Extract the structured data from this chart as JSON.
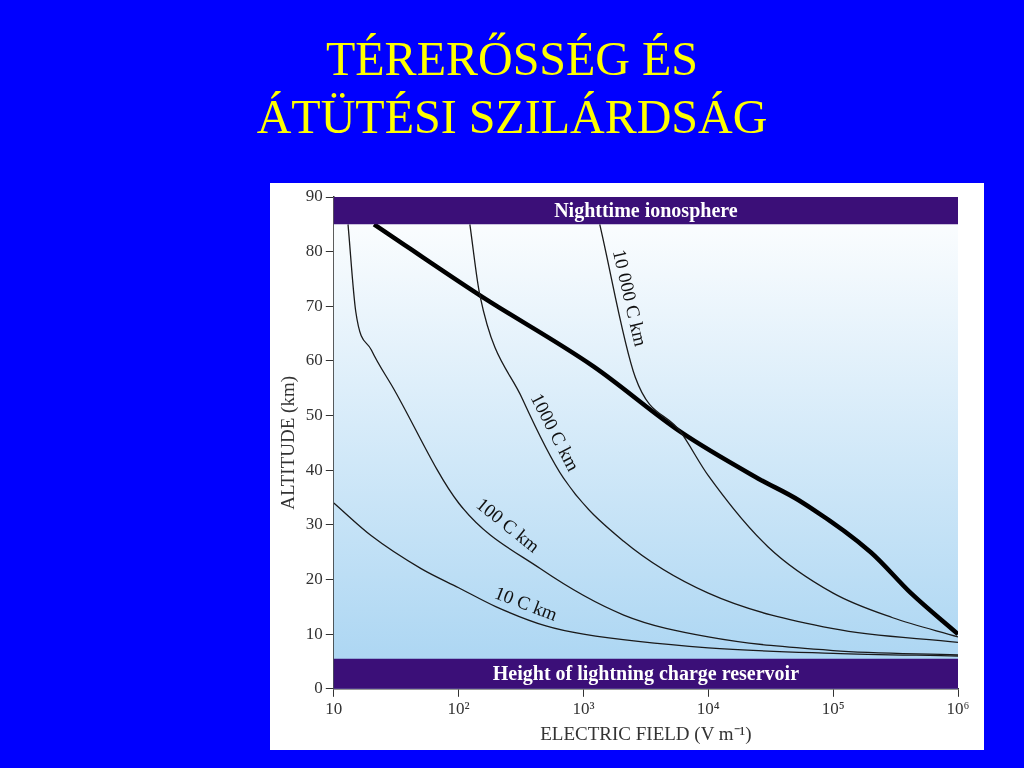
{
  "chart_data": {
    "type": "line",
    "title": "TÉRERŐSSÉG ÉS\nÁTÜTÉSI SZILÁRDSÁG",
    "xlabel": "ELECTRIC FIELD (V m⁻¹)",
    "ylabel": "ALTITUDE (km)",
    "log": "x",
    "grid": false,
    "legend": false,
    "marker": "none",
    "line_style": "solid",
    "xlim": [
      10,
      1000000
    ],
    "xticks": [
      10,
      {
        "value": 100,
        "label": "10²"
      },
      {
        "value": 1000,
        "label": "10³"
      },
      {
        "value": 10000,
        "label": "10⁴"
      },
      {
        "value": 100000,
        "label": "10⁵"
      },
      {
        "value": 1000000,
        "label": "10⁶"
      }
    ],
    "ylim": [
      0,
      90
    ],
    "yticks": [
      0,
      10,
      20,
      30,
      40,
      50,
      60,
      70,
      80,
      90
    ],
    "series": [
      {
        "name": "10 C km",
        "color": "#1a1a1a",
        "x": [
          10,
          20,
          50,
          100,
          200,
          500,
          1000,
          10000,
          100000,
          1000000
        ],
        "values": [
          34,
          28,
          22,
          18.5,
          15,
          11.5,
          10,
          7.5,
          6.5,
          6
        ]
      },
      {
        "name": "100 C km",
        "color": "#1a1a1a",
        "x": [
          13,
          15,
          20,
          30,
          100,
          450,
          2100,
          10000,
          100000,
          1000000
        ],
        "values": [
          85,
          69,
          62,
          55,
          34,
          22,
          13.5,
          9.5,
          7,
          6.2
        ]
      },
      {
        "name": "1000 C km",
        "color": "#1a1a1a",
        "x": [
          123,
          148,
          325,
          690,
          2100,
          10000,
          100000,
          1000000
        ],
        "values": [
          85,
          72,
          53,
          38.6,
          27,
          17.5,
          11,
          8.5
        ]
      },
      {
        "name": "10 000 C km",
        "color": "#1a1a1a",
        "x": [
          1350,
          2600,
          6000,
          10000,
          30000,
          100000,
          300000,
          1000000
        ],
        "values": [
          85,
          57,
          47,
          39,
          26,
          17.5,
          13,
          9.5
        ]
      },
      {
        "color": "#000000",
        "x": [
          21,
          148,
          1200,
          6000,
          25000,
          53000,
          200000,
          420000,
          1000000
        ],
        "values": [
          85,
          72,
          59,
          47,
          38.5,
          34.5,
          25,
          17.5,
          10
        ]
      }
    ],
    "bands": [
      {
        "axis": "y",
        "from": 85,
        "to": 90,
        "label": "Nighttime ionosphere",
        "color": "#3b0f78"
      },
      {
        "axis": "y",
        "from": 0,
        "to": 5.5,
        "label": "Height of lightning charge reservoir",
        "color": "#3b0f78"
      }
    ]
  }
}
